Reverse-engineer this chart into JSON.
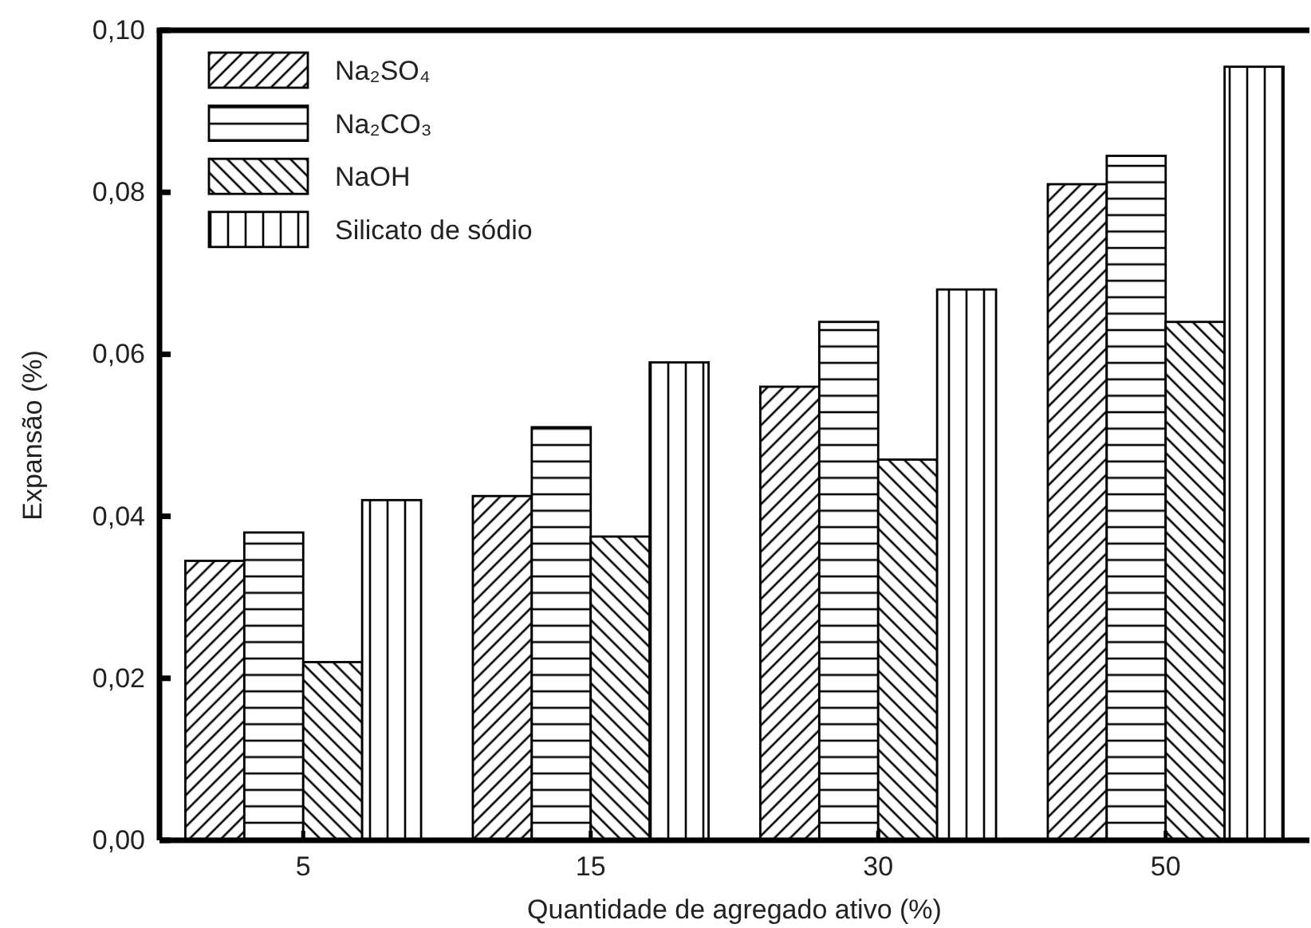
{
  "chart_data": {
    "type": "bar",
    "xlabel": "Quantidade de agregado ativo (%)",
    "ylabel": "Expansão (%)",
    "categories": [
      "5",
      "15",
      "30",
      "50"
    ],
    "series": [
      {
        "name": "Na₂SO₄",
        "color": "#000000",
        "values": [
          0.0345,
          0.0425,
          0.056,
          0.081
        ]
      },
      {
        "name": "Na₂CO₃",
        "color": "#000000",
        "values": [
          0.038,
          0.051,
          0.064,
          0.0845
        ]
      },
      {
        "name": "NaOH",
        "color": "#000000",
        "values": [
          0.022,
          0.0375,
          0.047,
          0.064
        ]
      },
      {
        "name": "Silicato de sódio",
        "color": "#000000",
        "values": [
          0.042,
          0.059,
          0.068,
          0.0955
        ]
      }
    ],
    "ylim": [
      0,
      0.1
    ],
    "yticks": [
      {
        "value": 0,
        "label": "0,00"
      },
      {
        "value": 0.02,
        "label": "0,02"
      },
      {
        "value": 0.04,
        "label": "0,04"
      },
      {
        "value": 0.06,
        "label": "0,06"
      },
      {
        "value": 0.08,
        "label": "0,08"
      },
      {
        "value": 0.1,
        "label": "0,10"
      }
    ],
    "legend": "top left"
  }
}
